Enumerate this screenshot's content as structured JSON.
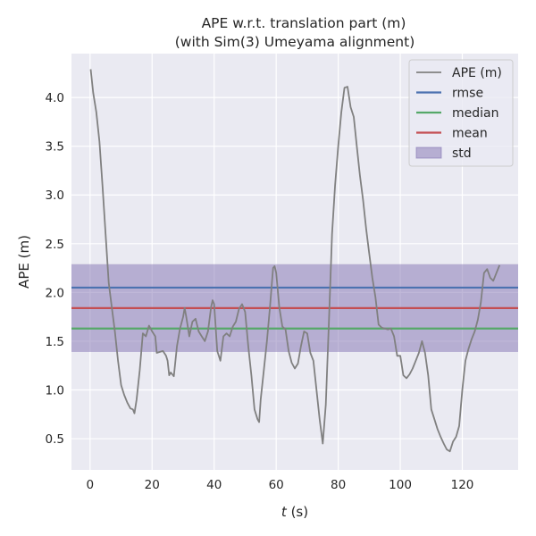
{
  "chart_data": {
    "type": "line",
    "title": "APE w.r.t. translation part (m)",
    "subtitle": "(with Sim(3) Umeyama alignment)",
    "xlabel_var": "t",
    "xlabel_unit": " (s)",
    "ylabel": "APE (m)",
    "xlim": [
      -6,
      138
    ],
    "ylim": [
      0.18,
      4.45
    ],
    "xticks": [
      0,
      20,
      40,
      60,
      80,
      100,
      120
    ],
    "yticks": [
      0.5,
      1.0,
      1.5,
      2.0,
      2.5,
      3.0,
      3.5,
      4.0
    ],
    "grid": true,
    "legend_position": "top-right",
    "stats": {
      "rmse": 2.05,
      "median": 1.63,
      "mean": 1.84,
      "std": 0.45
    },
    "legend": [
      {
        "label": "APE (m)",
        "kind": "line",
        "color": "#808080"
      },
      {
        "label": "rmse",
        "kind": "line",
        "color": "#4c72b0"
      },
      {
        "label": "median",
        "kind": "line",
        "color": "#55a868"
      },
      {
        "label": "mean",
        "kind": "line",
        "color": "#c44e52"
      },
      {
        "label": "std",
        "kind": "patch",
        "color": "#8172b2"
      }
    ],
    "series": [
      {
        "name": "APE (m)",
        "color": "#808080",
        "points": [
          [
            0.2,
            4.29
          ],
          [
            1,
            4.05
          ],
          [
            2,
            3.85
          ],
          [
            3,
            3.55
          ],
          [
            4,
            3.1
          ],
          [
            5,
            2.6
          ],
          [
            6,
            2.1
          ],
          [
            7,
            1.85
          ],
          [
            8,
            1.6
          ],
          [
            9,
            1.3
          ],
          [
            10,
            1.05
          ],
          [
            11,
            0.95
          ],
          [
            12,
            0.87
          ],
          [
            13,
            0.81
          ],
          [
            13.8,
            0.8
          ],
          [
            14.3,
            0.76
          ],
          [
            15,
            0.9
          ],
          [
            16,
            1.2
          ],
          [
            17,
            1.58
          ],
          [
            18,
            1.55
          ],
          [
            19,
            1.66
          ],
          [
            20,
            1.6
          ],
          [
            21,
            1.55
          ],
          [
            21.5,
            1.38
          ],
          [
            22.5,
            1.39
          ],
          [
            23.5,
            1.4
          ],
          [
            24.5,
            1.35
          ],
          [
            25,
            1.3
          ],
          [
            25.5,
            1.15
          ],
          [
            26,
            1.18
          ],
          [
            27,
            1.14
          ],
          [
            28,
            1.45
          ],
          [
            29,
            1.63
          ],
          [
            30,
            1.75
          ],
          [
            30.5,
            1.84
          ],
          [
            31,
            1.75
          ],
          [
            32,
            1.55
          ],
          [
            33,
            1.7
          ],
          [
            34,
            1.73
          ],
          [
            35,
            1.6
          ],
          [
            36,
            1.55
          ],
          [
            37,
            1.5
          ],
          [
            38,
            1.6
          ],
          [
            39,
            1.85
          ],
          [
            39.5,
            1.92
          ],
          [
            40,
            1.88
          ],
          [
            41,
            1.4
          ],
          [
            42,
            1.3
          ],
          [
            43,
            1.55
          ],
          [
            44,
            1.58
          ],
          [
            45,
            1.55
          ],
          [
            46,
            1.65
          ],
          [
            47,
            1.7
          ],
          [
            48,
            1.83
          ],
          [
            49,
            1.88
          ],
          [
            50,
            1.8
          ],
          [
            51,
            1.45
          ],
          [
            52,
            1.15
          ],
          [
            53,
            0.8
          ],
          [
            54,
            0.7
          ],
          [
            54.5,
            0.67
          ],
          [
            55,
            0.9
          ],
          [
            56,
            1.2
          ],
          [
            57,
            1.5
          ],
          [
            58,
            1.85
          ],
          [
            59,
            2.25
          ],
          [
            59.5,
            2.27
          ],
          [
            60,
            2.2
          ],
          [
            61,
            1.85
          ],
          [
            62,
            1.65
          ],
          [
            63,
            1.62
          ],
          [
            64,
            1.4
          ],
          [
            65,
            1.28
          ],
          [
            66,
            1.22
          ],
          [
            67,
            1.27
          ],
          [
            68,
            1.45
          ],
          [
            69,
            1.6
          ],
          [
            70,
            1.58
          ],
          [
            71,
            1.38
          ],
          [
            72,
            1.3
          ],
          [
            73,
            1.0
          ],
          [
            74,
            0.7
          ],
          [
            75,
            0.45
          ],
          [
            76,
            0.85
          ],
          [
            77,
            1.7
          ],
          [
            78,
            2.6
          ],
          [
            79,
            3.1
          ],
          [
            80,
            3.5
          ],
          [
            81,
            3.85
          ],
          [
            82,
            4.1
          ],
          [
            83,
            4.11
          ],
          [
            84,
            3.9
          ],
          [
            85,
            3.8
          ],
          [
            86,
            3.5
          ],
          [
            87,
            3.2
          ],
          [
            88,
            2.95
          ],
          [
            89,
            2.65
          ],
          [
            90,
            2.4
          ],
          [
            91,
            2.15
          ],
          [
            92,
            1.95
          ],
          [
            93,
            1.67
          ],
          [
            94,
            1.64
          ],
          [
            95,
            1.63
          ],
          [
            96,
            1.62
          ],
          [
            97,
            1.63
          ],
          [
            98,
            1.55
          ],
          [
            99,
            1.35
          ],
          [
            100,
            1.35
          ],
          [
            101,
            1.15
          ],
          [
            102,
            1.12
          ],
          [
            103,
            1.16
          ],
          [
            104,
            1.22
          ],
          [
            105,
            1.3
          ],
          [
            106,
            1.38
          ],
          [
            107,
            1.5
          ],
          [
            108,
            1.38
          ],
          [
            109,
            1.15
          ],
          [
            110,
            0.8
          ],
          [
            111,
            0.7
          ],
          [
            112,
            0.6
          ],
          [
            113,
            0.52
          ],
          [
            114,
            0.45
          ],
          [
            115,
            0.39
          ],
          [
            116,
            0.37
          ],
          [
            117,
            0.47
          ],
          [
            118,
            0.52
          ],
          [
            119,
            0.63
          ],
          [
            120,
            1.0
          ],
          [
            121,
            1.3
          ],
          [
            122,
            1.42
          ],
          [
            123,
            1.52
          ],
          [
            124,
            1.6
          ],
          [
            125,
            1.72
          ],
          [
            126,
            1.9
          ],
          [
            127,
            2.2
          ],
          [
            128,
            2.24
          ],
          [
            129,
            2.15
          ],
          [
            130,
            2.12
          ],
          [
            131,
            2.2
          ],
          [
            132,
            2.28
          ]
        ]
      }
    ]
  }
}
